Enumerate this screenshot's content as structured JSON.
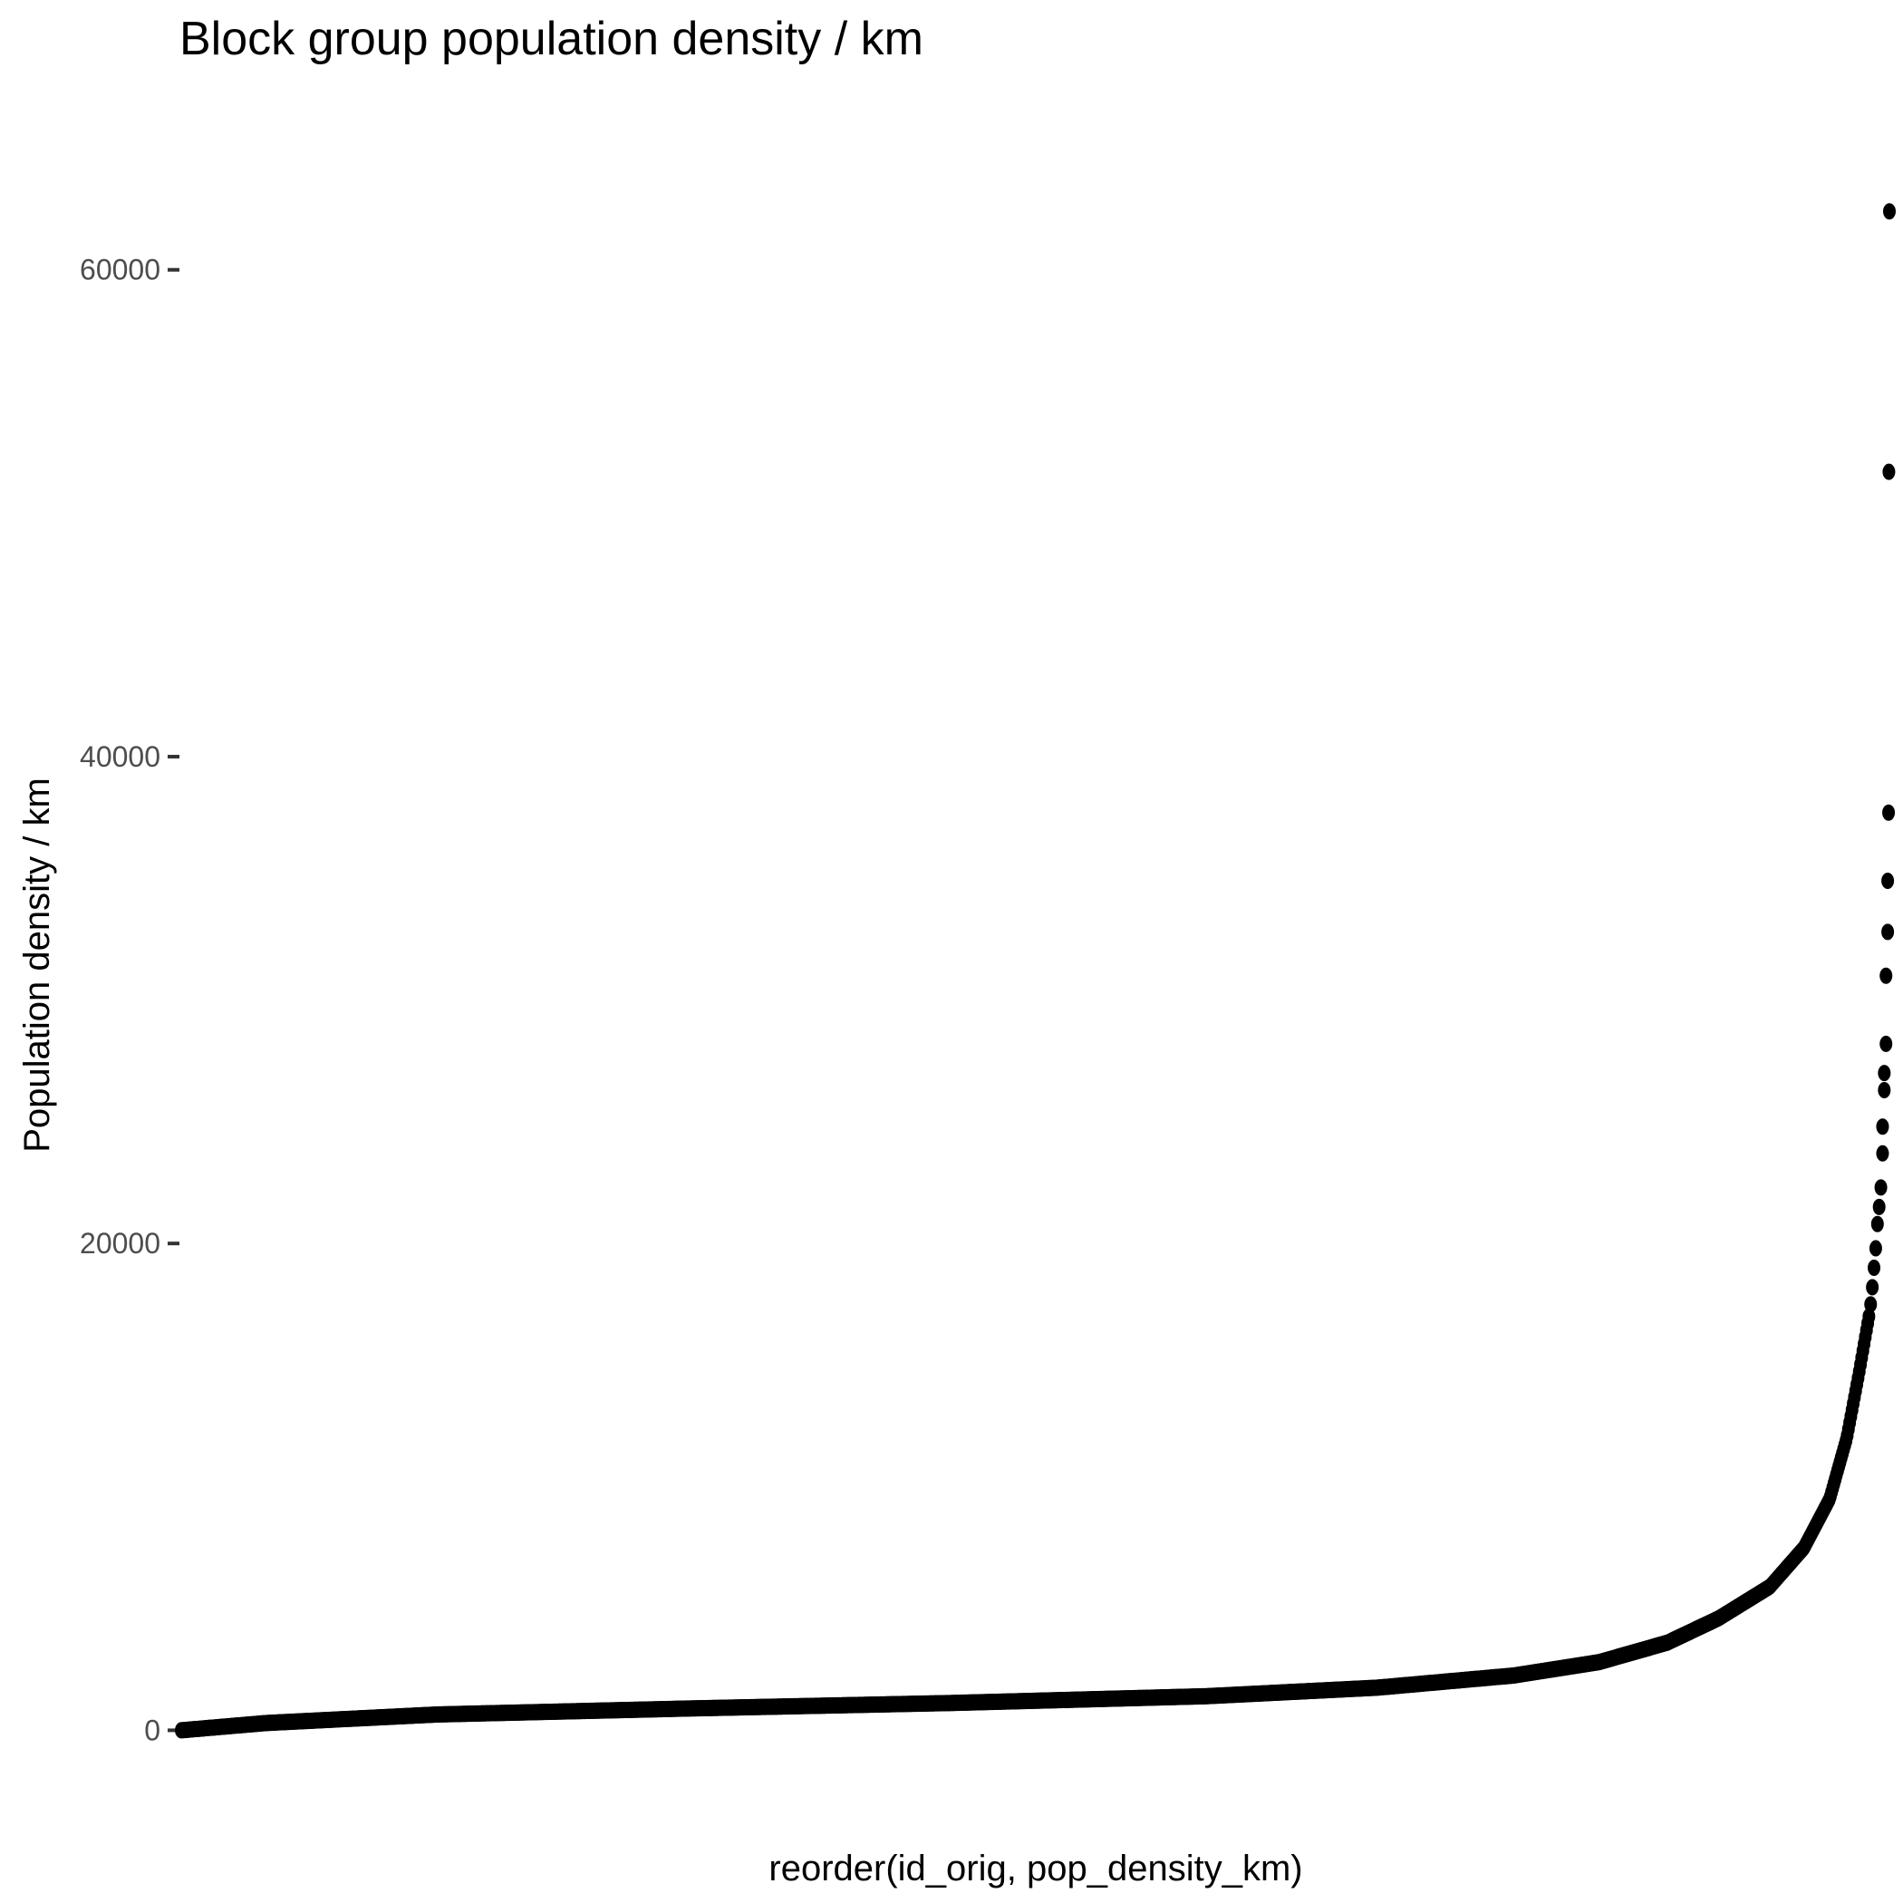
{
  "chart_data": {
    "type": "scatter",
    "title": "Block group population density / km",
    "xlabel": "reorder(id_orig, pop_density_km)",
    "ylabel": "Population density / km",
    "x_ticks": [],
    "y_ticks": [
      {
        "value": 0,
        "label": "0"
      },
      {
        "value": 20000,
        "label": "20000"
      },
      {
        "value": 40000,
        "label": "40000"
      },
      {
        "value": 60000,
        "label": "60000"
      }
    ],
    "xlim": [
      0,
      1
    ],
    "ylim": [
      -3000,
      65500
    ],
    "grid": false,
    "legend": "none",
    "point_color": "#000000",
    "description_of_x": "rank fraction of block group when sorted by density (0 = lowest, 1 = highest)",
    "curve_anchors": [
      {
        "x": 0.0,
        "y": 0
      },
      {
        "x": 0.05,
        "y": 300
      },
      {
        "x": 0.15,
        "y": 650
      },
      {
        "x": 0.3,
        "y": 900
      },
      {
        "x": 0.45,
        "y": 1120
      },
      {
        "x": 0.6,
        "y": 1400
      },
      {
        "x": 0.7,
        "y": 1750
      },
      {
        "x": 0.78,
        "y": 2250
      },
      {
        "x": 0.83,
        "y": 2800
      },
      {
        "x": 0.87,
        "y": 3600
      },
      {
        "x": 0.9,
        "y": 4600
      },
      {
        "x": 0.93,
        "y": 5900
      },
      {
        "x": 0.95,
        "y": 7500
      },
      {
        "x": 0.965,
        "y": 9500
      },
      {
        "x": 0.975,
        "y": 12000
      },
      {
        "x": 0.982,
        "y": 14600
      },
      {
        "x": 0.988,
        "y": 17000
      }
    ],
    "outliers": [
      {
        "x": 0.989,
        "y": 17500
      },
      {
        "x": 0.99,
        "y": 18200
      },
      {
        "x": 0.991,
        "y": 19000
      },
      {
        "x": 0.992,
        "y": 19800
      },
      {
        "x": 0.993,
        "y": 20800
      },
      {
        "x": 0.994,
        "y": 21500
      },
      {
        "x": 0.995,
        "y": 22300
      },
      {
        "x": 0.996,
        "y": 23700
      },
      {
        "x": 0.996,
        "y": 24800
      },
      {
        "x": 0.997,
        "y": 26300
      },
      {
        "x": 0.997,
        "y": 27000
      },
      {
        "x": 0.998,
        "y": 28200
      },
      {
        "x": 0.998,
        "y": 31000
      },
      {
        "x": 0.999,
        "y": 32800
      },
      {
        "x": 0.999,
        "y": 34900
      },
      {
        "x": 0.9995,
        "y": 37700
      },
      {
        "x": 0.9997,
        "y": 51700
      },
      {
        "x": 1.0,
        "y": 62400
      }
    ]
  }
}
